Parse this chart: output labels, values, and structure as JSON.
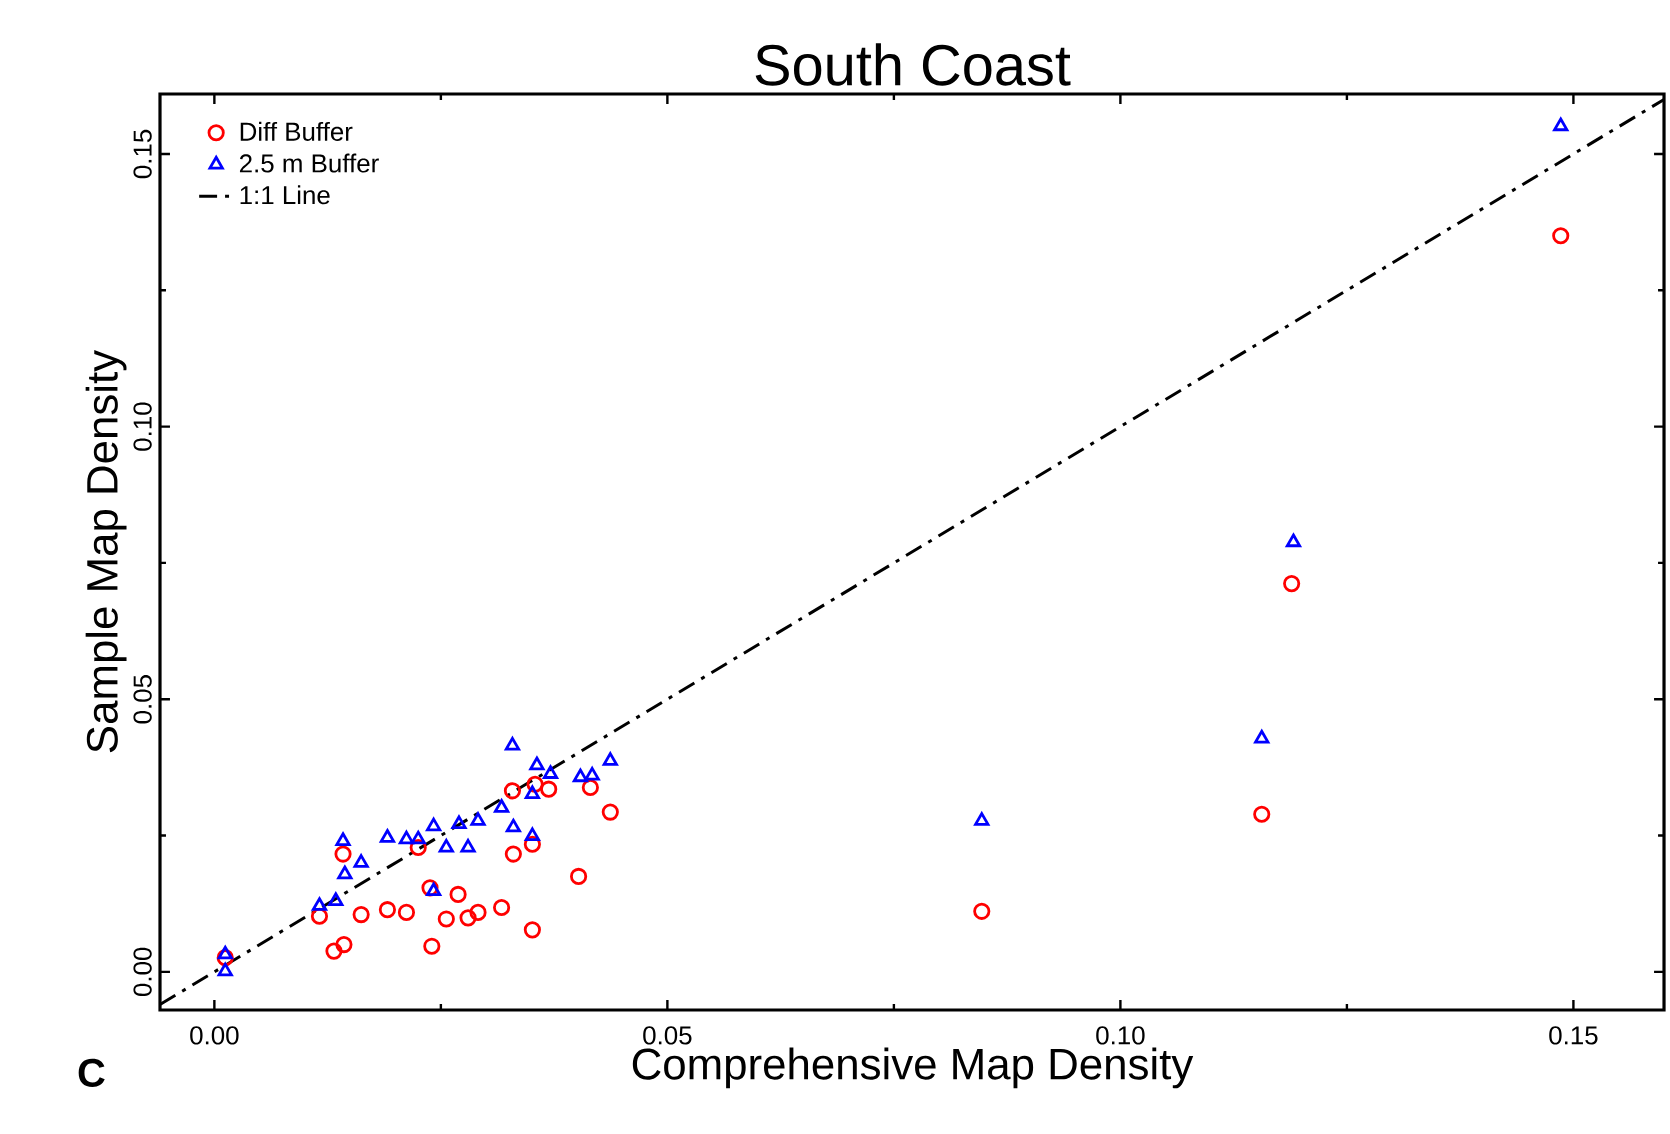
{
  "chart_data": {
    "type": "scatter",
    "title": "South Coast",
    "xlabel": "Comprehensive Map Density",
    "ylabel": "Sample Map Density",
    "annotations": [
      "C"
    ],
    "xlim": [
      -0.006,
      0.16
    ],
    "ylim": [
      -0.007,
      0.161
    ],
    "xticks": [
      {
        "value": 0,
        "label": "0.00"
      },
      0.05,
      {
        "value": 0.1,
        "label": "0.10"
      },
      0.15
    ],
    "yticks": [
      {
        "value": 0,
        "label": "0.00"
      },
      0.05,
      {
        "value": 0.1,
        "label": "0.10"
      },
      0.15
    ],
    "legend": "top left",
    "grid": false,
    "series": [
      {
        "name": "Diff Buffer",
        "color": "#ff0000",
        "marker": "circle",
        "x": [
          0.0012,
          0.0116,
          0.0132,
          0.0143,
          0.0142,
          0.0162,
          0.0191,
          0.0212,
          0.0225,
          0.024,
          0.0238,
          0.0269,
          0.0256,
          0.028,
          0.0291,
          0.0317,
          0.0351,
          0.033,
          0.0329,
          0.0351,
          0.0369,
          0.0354,
          0.0402,
          0.0415,
          0.0437,
          0.1189,
          0.1156,
          0.0847,
          0.1486
        ],
        "values": [
          0.0026,
          0.0102,
          0.0038,
          0.005,
          0.0216,
          0.0105,
          0.0114,
          0.0109,
          0.0228,
          0.0047,
          0.0154,
          0.0142,
          0.0097,
          0.0099,
          0.0109,
          0.0118,
          0.0077,
          0.0216,
          0.0332,
          0.0234,
          0.0335,
          0.0344,
          0.0175,
          0.0338,
          0.0293,
          0.0712,
          0.0289,
          0.0111,
          0.135
        ]
      },
      {
        "name": "2.5 m Buffer",
        "color": "#0000ff",
        "marker": "triangle",
        "x": [
          0.0012,
          0.0012,
          0.0116,
          0.0134,
          0.0142,
          0.0144,
          0.0162,
          0.0191,
          0.0212,
          0.0225,
          0.0242,
          0.0256,
          0.0242,
          0.027,
          0.028,
          0.0291,
          0.0317,
          0.0329,
          0.033,
          0.0351,
          0.0351,
          0.0356,
          0.0371,
          0.0404,
          0.0417,
          0.0437,
          0.1191,
          0.1156,
          0.0847,
          0.1486
        ],
        "values": [
          0.0032,
          0.0001,
          0.0121,
          0.013,
          0.024,
          0.0179,
          0.02,
          0.0246,
          0.0243,
          0.0243,
          0.0267,
          0.0228,
          0.0148,
          0.0271,
          0.0228,
          0.0277,
          0.0301,
          0.0415,
          0.0265,
          0.0249,
          0.0326,
          0.0379,
          0.0363,
          0.0357,
          0.036,
          0.0387,
          0.0788,
          0.0428,
          0.0277,
          0.1551
        ]
      },
      {
        "name": "1:1 Line",
        "type": "line",
        "color": "#000000",
        "line_style": "dashed",
        "marker": "none",
        "x": [
          -0.006,
          0.16
        ],
        "values": [
          -0.006,
          0.16
        ]
      }
    ]
  }
}
